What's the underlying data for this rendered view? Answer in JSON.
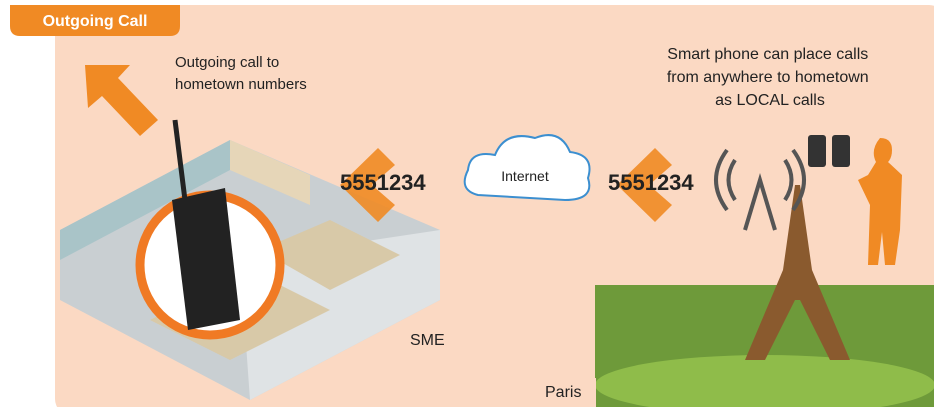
{
  "header": {
    "title": "Outgoing Call"
  },
  "labels": {
    "outgoing_note": [
      "Outgoing call to",
      "hometown numbers"
    ],
    "phone_note": [
      "Smart phone can place calls",
      "from anywhere to hometown",
      "as LOCAL calls"
    ],
    "number_left": "5551234",
    "number_right": "5551234",
    "cloud": "Internet",
    "office": "SME",
    "city": "Paris"
  }
}
